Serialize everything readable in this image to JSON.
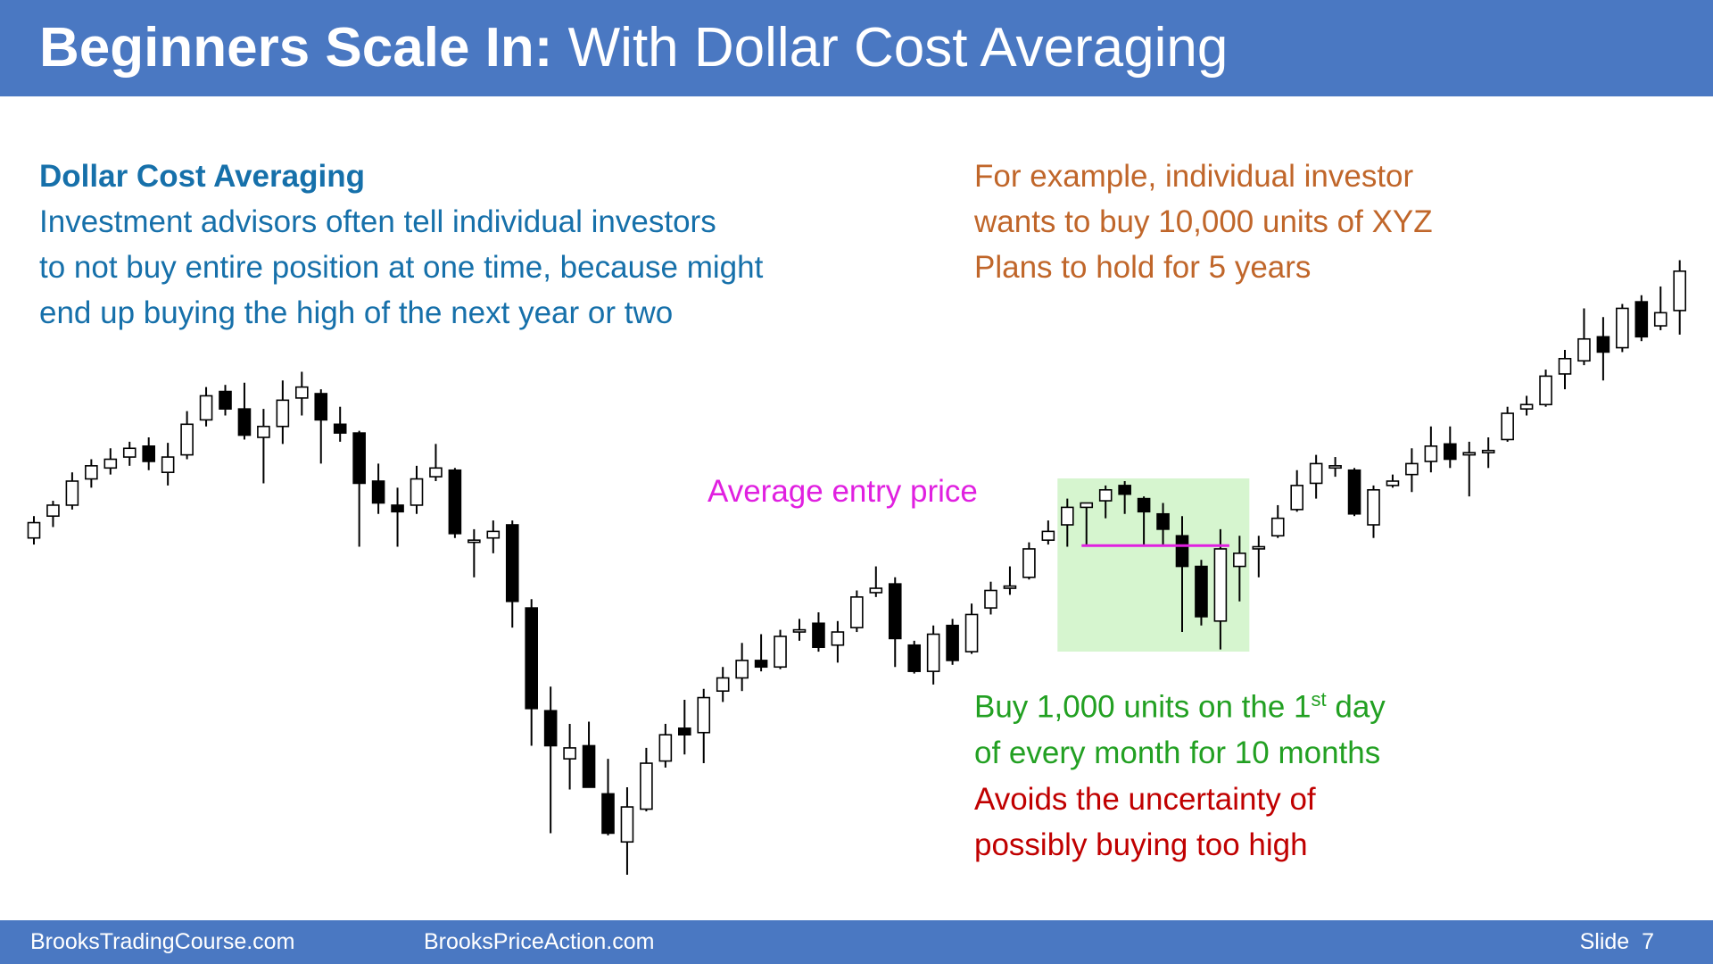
{
  "header": {
    "title_bold": "Beginners Scale In:",
    "title_rest": " With Dollar Cost Averaging"
  },
  "left_text": {
    "heading": "Dollar Cost Averaging",
    "lines": [
      "Investment advisors often tell individual investors",
      "to not buy entire position at one time, because might",
      "end up buying the high of the next year or two"
    ]
  },
  "right_text": {
    "lines": [
      "For example, individual investor",
      "wants to buy 10,000 units of XYZ",
      "Plans to hold for 5 years"
    ]
  },
  "annotation": "Average entry price",
  "buy_note": {
    "before": "Buy 1,000 units on the 1",
    "sup": "st",
    "after": " day",
    "line2": "of every month for 10 months"
  },
  "avoid_note": {
    "lines": [
      "Avoids the uncertainty of",
      "possibly buying too high"
    ]
  },
  "footer": {
    "left": "BrooksTradingCourse.com",
    "middle": "BrooksPriceAction.com",
    "slide": "Slide  7"
  },
  "chart_data": {
    "type": "candlestick",
    "ylim": [
      100,
      700
    ],
    "average_entry_price": 401,
    "up_color": "#ffffff",
    "down_color": "#000000",
    "highlight_color": "#d6f5cf",
    "average_color": "#e020e0",
    "open": [
      408,
      428,
      438,
      462,
      472,
      482,
      492,
      468,
      484,
      516,
      542,
      526,
      500,
      510,
      536,
      540,
      512,
      504,
      460,
      438,
      438,
      464,
      470,
      404,
      408,
      420,
      344,
      250,
      206,
      218,
      174,
      130,
      160,
      204,
      234,
      230,
      268,
      280,
      296,
      290,
      322,
      330,
      310,
      326,
      358,
      366,
      310,
      286,
      328,
      304,
      344,
      362,
      372,
      406,
      420,
      436,
      442,
      456,
      444,
      430,
      410,
      382,
      332,
      382,
      398,
      410,
      434,
      458,
      472,
      470,
      420,
      456,
      466,
      478,
      494,
      484,
      486,
      498,
      526,
      530,
      558,
      570,
      592,
      582,
      624,
      602,
      616
    ],
    "high": [
      428,
      442,
      468,
      480,
      490,
      496,
      500,
      495,
      524,
      546,
      548,
      550,
      526,
      552,
      560,
      544,
      528,
      506,
      476,
      454,
      474,
      494,
      472,
      416,
      424,
      424,
      352,
      272,
      238,
      240,
      206,
      180,
      216,
      238,
      260,
      270,
      290,
      312,
      320,
      324,
      334,
      340,
      332,
      360,
      382,
      372,
      314,
      328,
      334,
      348,
      368,
      382,
      404,
      424,
      444,
      440,
      456,
      460,
      446,
      440,
      428,
      388,
      416,
      410,
      410,
      438,
      470,
      484,
      482,
      472,
      456,
      466,
      490,
      510,
      510,
      496,
      500,
      528,
      538,
      562,
      580,
      618,
      610,
      622,
      630,
      638,
      662
    ],
    "low": [
      402,
      418,
      434,
      454,
      466,
      474,
      470,
      456,
      480,
      510,
      520,
      498,
      458,
      494,
      520,
      476,
      496,
      400,
      430,
      400,
      430,
      460,
      408,
      372,
      394,
      326,
      218,
      138,
      178,
      180,
      136,
      100,
      158,
      198,
      210,
      202,
      258,
      268,
      286,
      288,
      314,
      304,
      294,
      322,
      354,
      290,
      284,
      274,
      292,
      302,
      338,
      356,
      370,
      402,
      400,
      400,
      426,
      430,
      402,
      402,
      322,
      328,
      306,
      350,
      372,
      408,
      432,
      444,
      464,
      428,
      408,
      454,
      450,
      468,
      472,
      446,
      472,
      496,
      520,
      528,
      544,
      566,
      552,
      578,
      588,
      598,
      594
    ],
    "close": [
      422,
      438,
      460,
      474,
      480,
      490,
      478,
      482,
      512,
      538,
      526,
      502,
      510,
      534,
      546,
      516,
      504,
      458,
      440,
      432,
      462,
      472,
      412,
      406,
      414,
      350,
      252,
      218,
      216,
      180,
      138,
      162,
      202,
      228,
      228,
      262,
      280,
      296,
      290,
      318,
      324,
      308,
      322,
      354,
      362,
      316,
      286,
      320,
      296,
      338,
      360,
      364,
      398,
      414,
      436,
      440,
      452,
      448,
      432,
      416,
      382,
      336,
      398,
      394,
      400,
      426,
      456,
      476,
      474,
      430,
      452,
      460,
      476,
      492,
      480,
      486,
      488,
      522,
      530,
      556,
      572,
      590,
      578,
      618,
      592,
      614,
      652
    ]
  }
}
